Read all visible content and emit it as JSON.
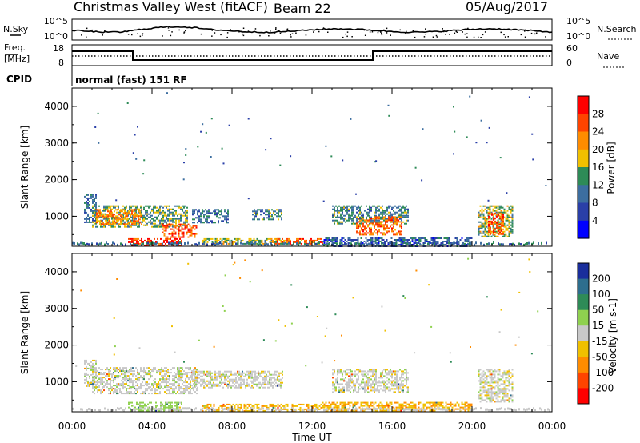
{
  "header": {
    "station": "Christmas Valley West (fitACF)",
    "beam": "Beam 22",
    "date": "05/Aug/2017"
  },
  "noise_panel": {
    "left_label": "N.Sky",
    "right_label": "N.Search",
    "left_ticks": [
      "10^5",
      "10^0"
    ],
    "right_ticks": [
      "10^5",
      "10^0"
    ]
  },
  "freq_panel": {
    "left_label_line1": "Freq.",
    "left_label_line2": "[MHz]",
    "right_label": "Nave",
    "left_ticks": [
      "18",
      "8"
    ],
    "right_ticks": [
      "60",
      "0"
    ]
  },
  "cpid": {
    "label": "CPID",
    "text": "normal (fast) 151 RF"
  },
  "chart_data": [
    {
      "type": "heatmap",
      "title": "",
      "quantity": "Power",
      "colorbar_label": "Power [dB]",
      "colorbar_ticks": [
        "28",
        "24",
        "20",
        "16",
        "12",
        "8",
        "4"
      ],
      "colorbar_colors": [
        "#ff0000",
        "#ff4400",
        "#ff8c00",
        "#f0c000",
        "#2e8b57",
        "#3c6ea0",
        "#2a3fa8",
        "#0000ff"
      ],
      "ylabel": "Slant Range [km]",
      "y_ticks": [
        "4000",
        "3000",
        "2000",
        "1000"
      ],
      "x_ticks": [
        "00:00",
        "04:00",
        "08:00",
        "12:00",
        "16:00",
        "20:00",
        "00:00"
      ],
      "xlim_hours": [
        0,
        24
      ],
      "ylim_km": [
        180,
        4500
      ],
      "echo_regions": [
        {
          "t0": 0.6,
          "t1": 1.2,
          "r0": 850,
          "r1": 1600,
          "power": 10
        },
        {
          "t0": 1.0,
          "t1": 5.8,
          "r0": 700,
          "r1": 1300,
          "power": 14
        },
        {
          "t0": 1.2,
          "t1": 3.5,
          "r0": 800,
          "r1": 1200,
          "power": 22
        },
        {
          "t0": 2.8,
          "t1": 5.5,
          "r0": 200,
          "r1": 400,
          "power": 27
        },
        {
          "t0": 4.5,
          "t1": 6.2,
          "r0": 450,
          "r1": 800,
          "power": 25
        },
        {
          "t0": 6.0,
          "t1": 7.8,
          "r0": 850,
          "r1": 1200,
          "power": 10
        },
        {
          "t0": 6.5,
          "t1": 10.5,
          "r0": 250,
          "r1": 400,
          "power": 16
        },
        {
          "t0": 9.0,
          "t1": 10.5,
          "r0": 900,
          "r1": 1200,
          "power": 12
        },
        {
          "t0": 10.0,
          "t1": 12.5,
          "r0": 250,
          "r1": 400,
          "power": 24
        },
        {
          "t0": 13.0,
          "t1": 16.8,
          "r0": 800,
          "r1": 1300,
          "power": 12
        },
        {
          "t0": 14.2,
          "t1": 16.5,
          "r0": 500,
          "r1": 1000,
          "power": 24
        },
        {
          "t0": 12.5,
          "t1": 20.0,
          "r0": 200,
          "r1": 420,
          "power": 8
        },
        {
          "t0": 20.3,
          "t1": 22.0,
          "r0": 450,
          "r1": 1300,
          "power": 16
        },
        {
          "t0": 20.8,
          "t1": 21.6,
          "r0": 500,
          "r1": 1100,
          "power": 26
        }
      ]
    },
    {
      "type": "heatmap",
      "title": "",
      "quantity": "Velocity",
      "colorbar_label": "Velocity [m s-1]",
      "colorbar_ticks": [
        "200",
        "100",
        "50",
        "15",
        "-15",
        "-50",
        "-100",
        "-200"
      ],
      "colorbar_colors": [
        "#1a2e9c",
        "#2d6e8e",
        "#2e8b57",
        "#8fd14f",
        "#c8c8c8",
        "#f0c000",
        "#ff8c00",
        "#ff4400",
        "#ff0000"
      ],
      "ylabel": "Slant Range [km]",
      "y_ticks": [
        "4000",
        "3000",
        "2000",
        "1000"
      ],
      "x_ticks": [
        "00:00",
        "04:00",
        "08:00",
        "12:00",
        "16:00",
        "20:00",
        "00:00"
      ],
      "xlabel": "Time UT",
      "xlim_hours": [
        0,
        24
      ],
      "ylim_km": [
        180,
        4500
      ],
      "echo_regions": [
        {
          "t0": 0.6,
          "t1": 1.2,
          "r0": 850,
          "r1": 1600,
          "velocity": 0
        },
        {
          "t0": 1.0,
          "t1": 6.2,
          "r0": 700,
          "r1": 1400,
          "velocity": 0
        },
        {
          "t0": 2.8,
          "t1": 5.5,
          "r0": 220,
          "r1": 450,
          "velocity": 30
        },
        {
          "t0": 6.0,
          "t1": 10.5,
          "r0": 850,
          "r1": 1300,
          "velocity": 0
        },
        {
          "t0": 6.5,
          "t1": 12.5,
          "r0": 220,
          "r1": 400,
          "velocity": -40
        },
        {
          "t0": 13.0,
          "t1": 16.8,
          "r0": 700,
          "r1": 1350,
          "velocity": 0
        },
        {
          "t0": 12.5,
          "t1": 20.0,
          "r0": 200,
          "r1": 450,
          "velocity": -45
        },
        {
          "t0": 20.3,
          "t1": 22.0,
          "r0": 450,
          "r1": 1350,
          "velocity": 0
        }
      ]
    }
  ]
}
